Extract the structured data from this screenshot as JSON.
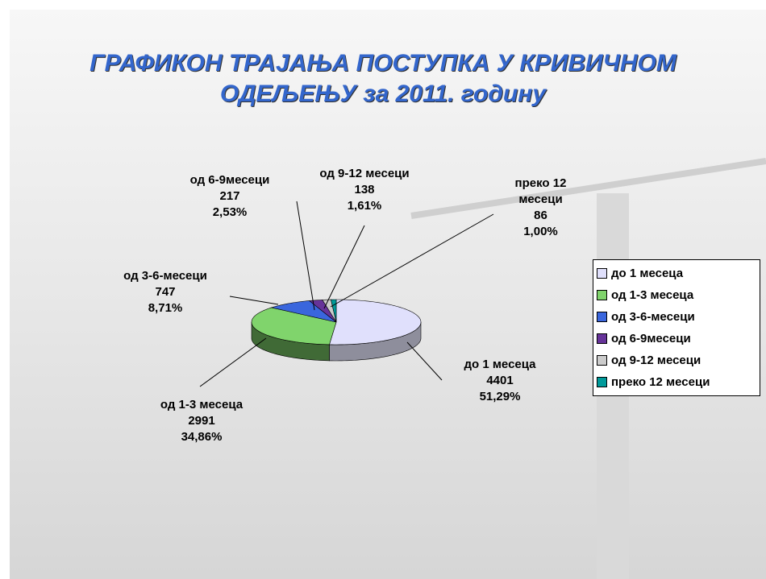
{
  "chart_data": {
    "type": "pie3d",
    "title": "ГРАФИКОН ТРАЈАЊА ПОСТУПКА У КРИВИЧНОМ ОДЕЉЕЊУ за 2011. годину",
    "categories": [
      "до 1 месеца",
      "од 1-3 месеца",
      "од 3-6-месеци",
      "од 6-9месеци",
      "од 9-12 месеци",
      "преко 12 месеци"
    ],
    "values": [
      4401,
      2991,
      747,
      217,
      138,
      86
    ],
    "percentages": [
      51.29,
      34.86,
      8.71,
      2.53,
      1.61,
      1.0
    ],
    "percentage_labels": [
      "51,29%",
      "34,86%",
      "8,71%",
      "2,53%",
      "1,61%",
      "1,00%"
    ],
    "colors": [
      "#e0e0fc",
      "#80d46c",
      "#3a66dd",
      "#663399",
      "#cccccc",
      "#009a9a"
    ],
    "legend": "right"
  }
}
